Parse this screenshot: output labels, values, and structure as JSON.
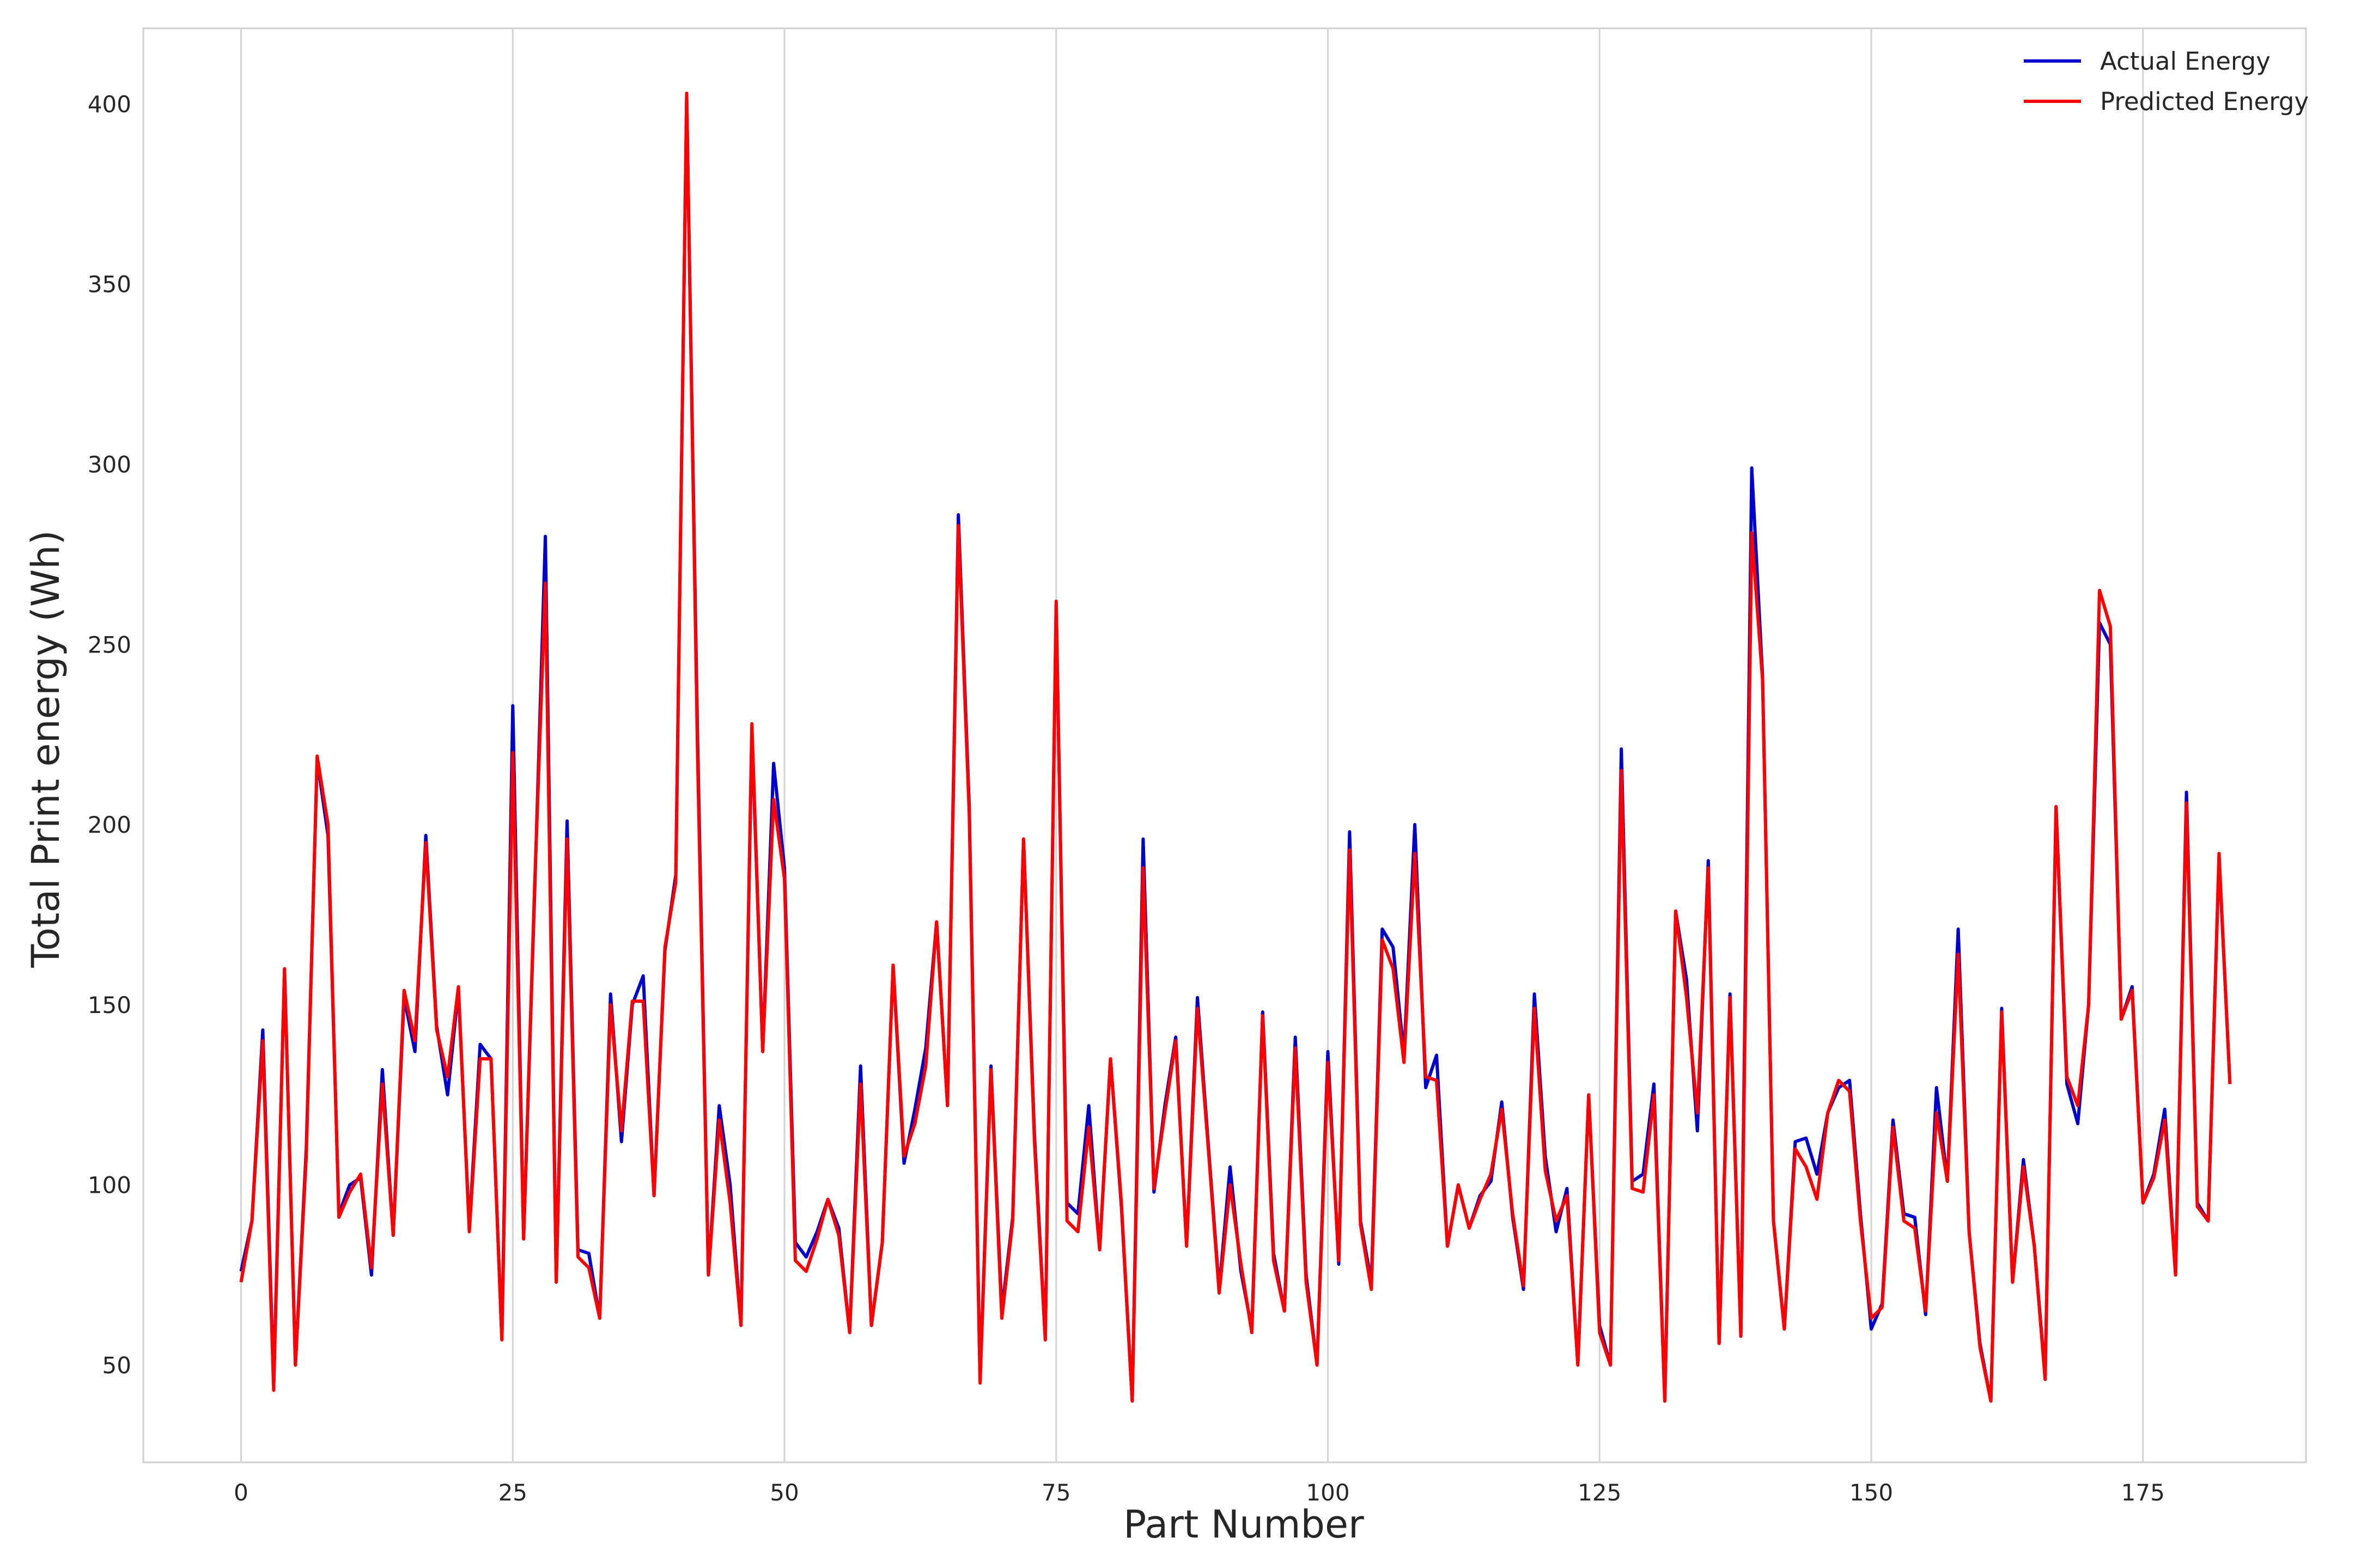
{
  "chart_data": {
    "type": "line",
    "title": "",
    "xlabel": "Part Number",
    "ylabel": "Total Print energy (Wh)",
    "xlim": [
      -9,
      190
    ],
    "ylim": [
      23,
      421
    ],
    "xticks": [
      0,
      25,
      50,
      75,
      100,
      125,
      150,
      175
    ],
    "yticks": [
      50,
      100,
      150,
      200,
      250,
      300,
      350,
      400
    ],
    "grid": "vertical",
    "legend_position": "top-right",
    "series": [
      {
        "name": "Actual Energy",
        "color": "#0000cc",
        "values": [
          76,
          90,
          143,
          45,
          160,
          50,
          110,
          218,
          197,
          92,
          100,
          102,
          75,
          132,
          86,
          152,
          137,
          197,
          144,
          125,
          154,
          88,
          139,
          135,
          57,
          233,
          85,
          180,
          280,
          73,
          201,
          82,
          81,
          63,
          153,
          112,
          150,
          158,
          97,
          165,
          186,
          402,
          225,
          75,
          122,
          100,
          61,
          226,
          137,
          217,
          188,
          84,
          80,
          87,
          96,
          88,
          59,
          133,
          61,
          84,
          161,
          106,
          121,
          138,
          173,
          122,
          286,
          205,
          46,
          133,
          65,
          91,
          196,
          114,
          57,
          261,
          95,
          92,
          122,
          82,
          135,
          94,
          40,
          196,
          98,
          122,
          141,
          83,
          152,
          111,
          71,
          105,
          76,
          60,
          148,
          81,
          65,
          141,
          75,
          50,
          137,
          78,
          198,
          90,
          73,
          171,
          166,
          136,
          200,
          127,
          136,
          83,
          100,
          88,
          97,
          101,
          123,
          91,
          71,
          153,
          108,
          87,
          99,
          50,
          125,
          61,
          50,
          221,
          101,
          103,
          128,
          40,
          176,
          157,
          115,
          190,
          56,
          153,
          58,
          299,
          241,
          90,
          60,
          112,
          113,
          103,
          120,
          127,
          129,
          92,
          60,
          67,
          118,
          92,
          91,
          64,
          127,
          101,
          171,
          87,
          56,
          40,
          149,
          73,
          107,
          83,
          47,
          205,
          128,
          117,
          150,
          256,
          250,
          146,
          155,
          95,
          103,
          121,
          75,
          209,
          95,
          90,
          191,
          128
        ]
      },
      {
        "name": "Predicted Energy",
        "color": "#ff0000",
        "values": [
          73,
          90,
          140,
          43,
          160,
          50,
          108,
          219,
          200,
          91,
          98,
          103,
          77,
          128,
          86,
          154,
          140,
          195,
          143,
          130,
          155,
          87,
          135,
          135,
          57,
          220,
          85,
          182,
          267,
          73,
          196,
          80,
          77,
          63,
          150,
          115,
          151,
          151,
          97,
          166,
          184,
          403,
          220,
          75,
          118,
          95,
          61,
          228,
          137,
          207,
          185,
          79,
          76,
          85,
          96,
          86,
          59,
          128,
          61,
          84,
          161,
          108,
          117,
          133,
          173,
          122,
          283,
          203,
          45,
          132,
          63,
          90,
          196,
          112,
          57,
          262,
          90,
          87,
          116,
          82,
          135,
          95,
          40,
          188,
          99,
          120,
          140,
          83,
          149,
          110,
          70,
          100,
          78,
          59,
          147,
          79,
          65,
          138,
          73,
          50,
          134,
          79,
          193,
          89,
          71,
          168,
          160,
          134,
          192,
          130,
          129,
          83,
          100,
          88,
          96,
          103,
          121,
          92,
          72,
          149,
          104,
          90,
          97,
          50,
          125,
          59,
          50,
          215,
          99,
          98,
          125,
          40,
          176,
          152,
          120,
          188,
          56,
          152,
          58,
          281,
          240,
          90,
          60,
          110,
          105,
          96,
          120,
          129,
          126,
          90,
          63,
          66,
          116,
          90,
          88,
          65,
          120,
          101,
          164,
          87,
          55,
          40,
          148,
          73,
          105,
          83,
          46,
          205,
          130,
          122,
          150,
          265,
          255,
          146,
          154,
          95,
          102,
          118,
          75,
          206,
          94,
          90,
          192,
          128
        ]
      }
    ]
  }
}
